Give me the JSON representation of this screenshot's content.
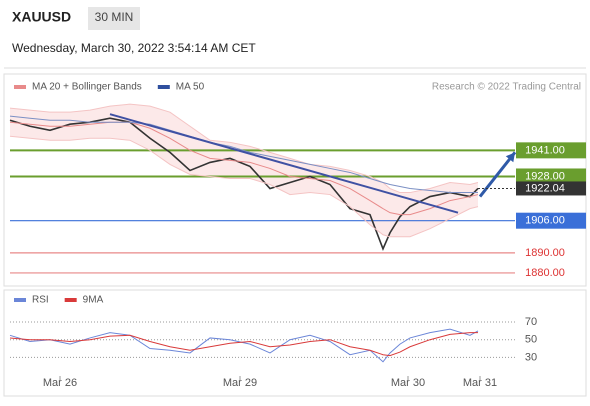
{
  "header": {
    "symbol": "XAUUSD",
    "timeframe": "30 MIN",
    "timestamp": "Wednesday, March 30, 2022 3:54:14 AM CET",
    "copyright": "Research © 2022 Trading Central"
  },
  "chart_data": [
    {
      "type": "line",
      "legend": [
        "MA 20 + Bollinger Bands",
        "MA 50"
      ],
      "legend_colors": [
        "#e88a8a",
        "#2f4f9e"
      ],
      "xlim": [
        0,
        101
      ],
      "ylim": [
        1874,
        1977
      ],
      "x": [
        0,
        4,
        8,
        12,
        16,
        20,
        24,
        28,
        32,
        36,
        40,
        44,
        48,
        52,
        56,
        60,
        64,
        68,
        72,
        74.6,
        76,
        78,
        80,
        84,
        88,
        92,
        93.6
      ],
      "series": [
        {
          "name": "Price",
          "color": "#333333",
          "values": [
            1956,
            1953,
            1951,
            1954,
            1955,
            1957,
            1955,
            1947,
            1940,
            1931,
            1935,
            1937,
            1933,
            1922,
            1925,
            1928,
            1924,
            1912,
            1909,
            1892,
            1900,
            1908,
            1913,
            1918,
            1920,
            1918,
            1922.04
          ]
        },
        {
          "name": "BB upper",
          "color": "#f4c4c4",
          "values": [
            1962,
            1961,
            1960,
            1960,
            1961,
            1963,
            1964,
            1963,
            1960,
            1953,
            1946,
            1945,
            1943,
            1940,
            1937,
            1934,
            1933,
            1931,
            1928,
            1925,
            1922,
            1920,
            1920,
            1922,
            1925,
            1924,
            1925
          ]
        },
        {
          "name": "BB lower",
          "color": "#f4c4c4",
          "values": [
            1948,
            1947,
            1946,
            1946,
            1947,
            1947,
            1946,
            1941,
            1934,
            1929,
            1928,
            1927,
            1927,
            1924,
            1919,
            1920,
            1919,
            1913,
            1904,
            1899,
            1898,
            1898,
            1898,
            1902,
            1907,
            1912,
            1913
          ]
        },
        {
          "name": "MA 20",
          "color": "#e88a8a",
          "values": [
            1955,
            1954,
            1953,
            1953,
            1954,
            1955,
            1955,
            1952,
            1947,
            1941,
            1937,
            1936,
            1935,
            1932,
            1928,
            1927,
            1926,
            1922,
            1916,
            1912,
            1910,
            1909,
            1909,
            1912,
            1916,
            1918,
            1919
          ]
        },
        {
          "name": "MA 50",
          "color": "#7b8fc4",
          "values": [
            1958,
            1957,
            1956,
            1956,
            1955,
            1955,
            1955,
            1954,
            1951,
            1948,
            1945,
            1943,
            1940,
            1938,
            1936,
            1934,
            1932,
            1930,
            1927,
            1925,
            1924,
            1923,
            1922,
            1921,
            1920,
            1920,
            1920
          ]
        }
      ],
      "trendline": {
        "x": [
          20,
          89.6
        ],
        "values": [
          1959,
          1910
        ],
        "color": "#3f51a3"
      },
      "arrow": {
        "x": [
          94,
          101
        ],
        "values": [
          1918,
          1940
        ],
        "color": "#2f5aa8"
      },
      "levels": {
        "values": [
          1941,
          1928,
          1906,
          1890,
          1880
        ],
        "value_labels": [
          "1941.00",
          "1928.00",
          "1906.00",
          "1890.00",
          "1880.00"
        ],
        "colors": [
          "#6a9e2e",
          "#6a9e2e",
          "#3a6fd8",
          "#e88888",
          "#e88888"
        ]
      },
      "last_price": 1922.04
    },
    {
      "type": "line",
      "legend": [
        "RSI",
        "9MA"
      ],
      "xlim": [
        0,
        101
      ],
      "ylim": [
        10,
        78
      ],
      "yticks": [
        30,
        50,
        70
      ],
      "x": [
        0,
        4,
        8,
        12,
        16,
        20,
        24,
        28,
        32,
        36,
        40,
        44,
        48,
        52,
        56,
        60,
        64,
        68,
        72,
        74.6,
        76,
        78,
        80,
        84,
        88,
        92,
        93.6
      ],
      "series": [
        {
          "name": "RSI",
          "color": "#6b86d8",
          "values": [
            55,
            48,
            50,
            45,
            52,
            58,
            55,
            40,
            38,
            35,
            52,
            50,
            45,
            35,
            50,
            55,
            48,
            33,
            38,
            25,
            35,
            45,
            52,
            58,
            62,
            55,
            60
          ]
        },
        {
          "name": "9MA",
          "color": "#d93a3a",
          "values": [
            52,
            50,
            50,
            48,
            50,
            54,
            55,
            48,
            42,
            38,
            42,
            46,
            48,
            42,
            44,
            48,
            50,
            42,
            38,
            33,
            32,
            36,
            42,
            50,
            56,
            58,
            58
          ]
        }
      ],
      "xticks": [
        {
          "value": 10,
          "label": "Mar 26"
        },
        {
          "value": 46,
          "label": "Mar 29"
        },
        {
          "value": 79.6,
          "label": "Mar 30"
        },
        {
          "value": 94,
          "label": "Mar 31"
        }
      ]
    }
  ]
}
